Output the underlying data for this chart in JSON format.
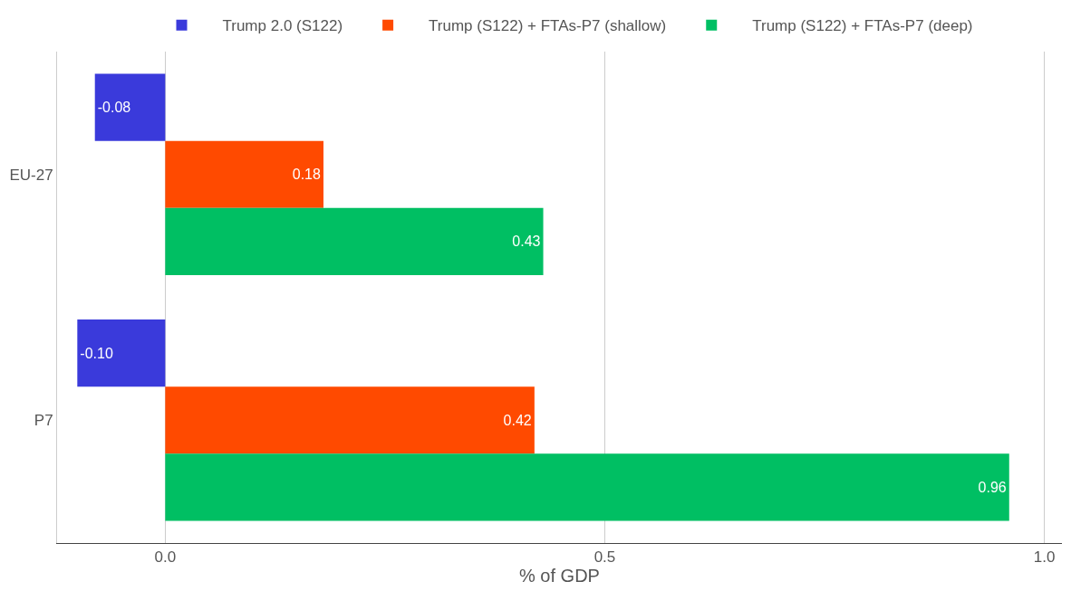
{
  "chart_data": {
    "type": "bar",
    "orientation": "horizontal",
    "xlabel": "% of GDP",
    "categories": [
      "EU-27",
      "P7"
    ],
    "series": [
      {
        "name": "Trump 2.0 (S122)",
        "color": "#3a3adb",
        "values": [
          -0.08,
          -0.1
        ],
        "value_labels": [
          "-0.08",
          "-0.10"
        ]
      },
      {
        "name": "Trump (S122) + FTAs-P7 (shallow)",
        "color": "#ff4a00",
        "values": [
          0.18,
          0.42
        ],
        "value_labels": [
          "0.18",
          "0.42"
        ]
      },
      {
        "name": "Trump (S122) + FTAs-P7 (deep)",
        "color": "#00bf63",
        "values": [
          0.43,
          0.96
        ],
        "value_labels": [
          "0.43",
          "0.96"
        ]
      }
    ],
    "xlim": [
      -0.123,
      1.02
    ],
    "xticks": [
      {
        "value": 0,
        "label": "0.0"
      },
      0.5,
      {
        "value": 1,
        "label": "1.0"
      }
    ],
    "grid": "x",
    "legend": "top"
  }
}
